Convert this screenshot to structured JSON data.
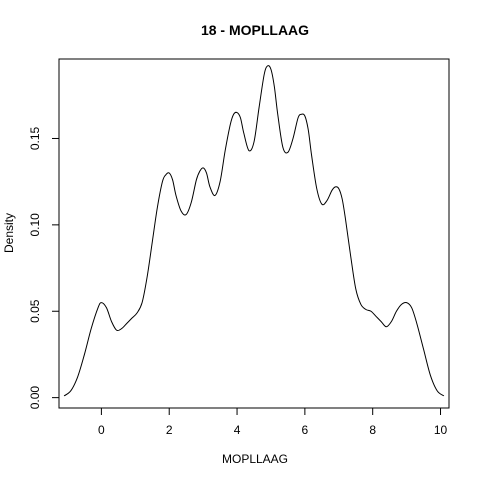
{
  "chart_data": {
    "type": "line",
    "title": "18 - MOPLLAAG",
    "xlabel": "MOPLLAAG",
    "ylabel": "Density",
    "xlim": [
      -1.25,
      10.25
    ],
    "ylim": [
      -0.006,
      0.196
    ],
    "x_ticks": [
      0,
      2,
      4,
      6,
      8,
      10
    ],
    "x_tick_labels": [
      "0",
      "2",
      "4",
      "6",
      "8",
      "10"
    ],
    "y_ticks": [
      0.0,
      0.05,
      0.1,
      0.15
    ],
    "y_tick_labels": [
      "0.00",
      "0.05",
      "0.10",
      "0.15"
    ],
    "grid": false,
    "series": [
      {
        "x": [
          -1.1,
          -0.9,
          -0.7,
          -0.5,
          -0.3,
          -0.1,
          0.0,
          0.15,
          0.3,
          0.45,
          0.6,
          0.75,
          0.9,
          1.05,
          1.2,
          1.35,
          1.5,
          1.65,
          1.8,
          1.9,
          2.0,
          2.1,
          2.2,
          2.35,
          2.5,
          2.65,
          2.8,
          2.9,
          3.0,
          3.1,
          3.2,
          3.35,
          3.5,
          3.65,
          3.8,
          3.9,
          4.0,
          4.1,
          4.2,
          4.35,
          4.5,
          4.65,
          4.8,
          4.9,
          5.0,
          5.1,
          5.2,
          5.35,
          5.5,
          5.65,
          5.8,
          5.9,
          6.0,
          6.1,
          6.2,
          6.35,
          6.5,
          6.65,
          6.8,
          6.9,
          7.0,
          7.1,
          7.2,
          7.35,
          7.5,
          7.65,
          7.8,
          7.95,
          8.1,
          8.25,
          8.4,
          8.55,
          8.7,
          8.85,
          9.0,
          9.15,
          9.3,
          9.5,
          9.7,
          9.9,
          10.1
        ],
        "y": [
          0.001,
          0.004,
          0.012,
          0.025,
          0.04,
          0.052,
          0.055,
          0.052,
          0.044,
          0.039,
          0.04,
          0.043,
          0.046,
          0.049,
          0.055,
          0.07,
          0.09,
          0.11,
          0.125,
          0.129,
          0.13,
          0.126,
          0.117,
          0.108,
          0.106,
          0.113,
          0.126,
          0.131,
          0.133,
          0.13,
          0.122,
          0.117,
          0.125,
          0.143,
          0.158,
          0.164,
          0.165,
          0.162,
          0.153,
          0.143,
          0.148,
          0.168,
          0.187,
          0.192,
          0.19,
          0.18,
          0.164,
          0.145,
          0.142,
          0.15,
          0.162,
          0.164,
          0.163,
          0.155,
          0.14,
          0.121,
          0.112,
          0.114,
          0.12,
          0.122,
          0.121,
          0.115,
          0.103,
          0.082,
          0.063,
          0.054,
          0.051,
          0.05,
          0.047,
          0.044,
          0.041,
          0.044,
          0.05,
          0.054,
          0.055,
          0.052,
          0.043,
          0.028,
          0.013,
          0.004,
          0.001
        ]
      }
    ]
  }
}
